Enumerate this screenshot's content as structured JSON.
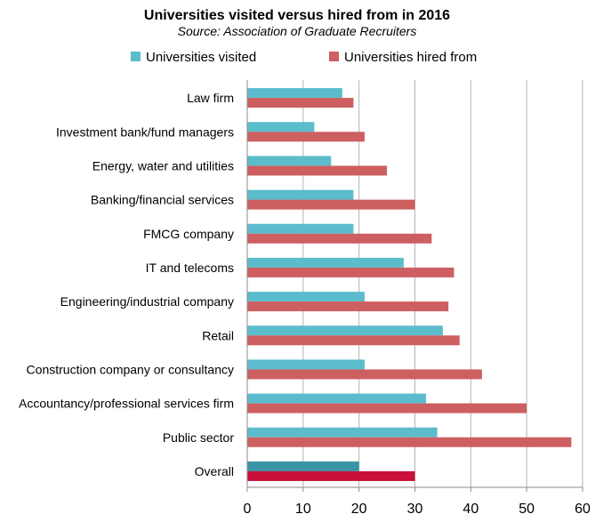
{
  "chart_data": {
    "type": "bar",
    "orientation": "horizontal",
    "title": "Universities visited versus hired from in 2016",
    "subtitle": "Source: Association of Graduate Recruiters",
    "categories": [
      "Law firm",
      "Investment bank/fund managers",
      "Energy, water and utilities",
      "Banking/financial services",
      "FMCG company",
      "IT and telecoms",
      "Engineering/industrial company",
      "Retail",
      "Construction company or consultancy",
      "Accountancy/professional services firm",
      "Public sector",
      "Overall"
    ],
    "series": [
      {
        "name": "Universities visited",
        "color": "#5bbccc",
        "values": [
          17,
          12,
          15,
          19,
          19,
          28,
          21,
          35,
          21,
          32,
          34,
          20
        ]
      },
      {
        "name": "Universities hired from",
        "color": "#cd5f60",
        "values": [
          19,
          21,
          25,
          30,
          33,
          37,
          36,
          38,
          42,
          50,
          58,
          30
        ]
      }
    ],
    "highlight": {
      "category": "Overall",
      "colors": [
        "#3a95a5",
        "#c8103a"
      ]
    },
    "xlim": [
      0,
      60
    ],
    "xticks": [
      0,
      10,
      20,
      30,
      40,
      50,
      60
    ],
    "xlabel": "",
    "ylabel": "",
    "grid": true,
    "legend": "top"
  }
}
